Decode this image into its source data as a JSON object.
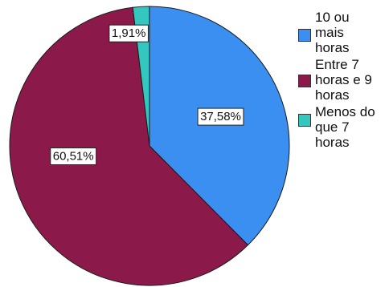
{
  "chart_data": {
    "type": "pie",
    "title": "",
    "slices": [
      {
        "label": "10 ou mais horas",
        "legend_text": "10 ou\nmais\nhoras",
        "value": 37.58,
        "display": "37,58%",
        "color": "#3b8ff0"
      },
      {
        "label": "Entre 7 horas e 9 horas",
        "legend_text": "Entre 7\nhoras e 9\nhoras",
        "value": 60.51,
        "display": "60,51%",
        "color": "#8b1a4a"
      },
      {
        "label": "Menos do que 7 horas",
        "legend_text": "Menos do\nque 7\nhoras",
        "value": 1.91,
        "display": "1,91%",
        "color": "#33c7c0"
      }
    ],
    "start_angle_deg": 0,
    "direction": "clockwise",
    "legend_position": "right"
  }
}
